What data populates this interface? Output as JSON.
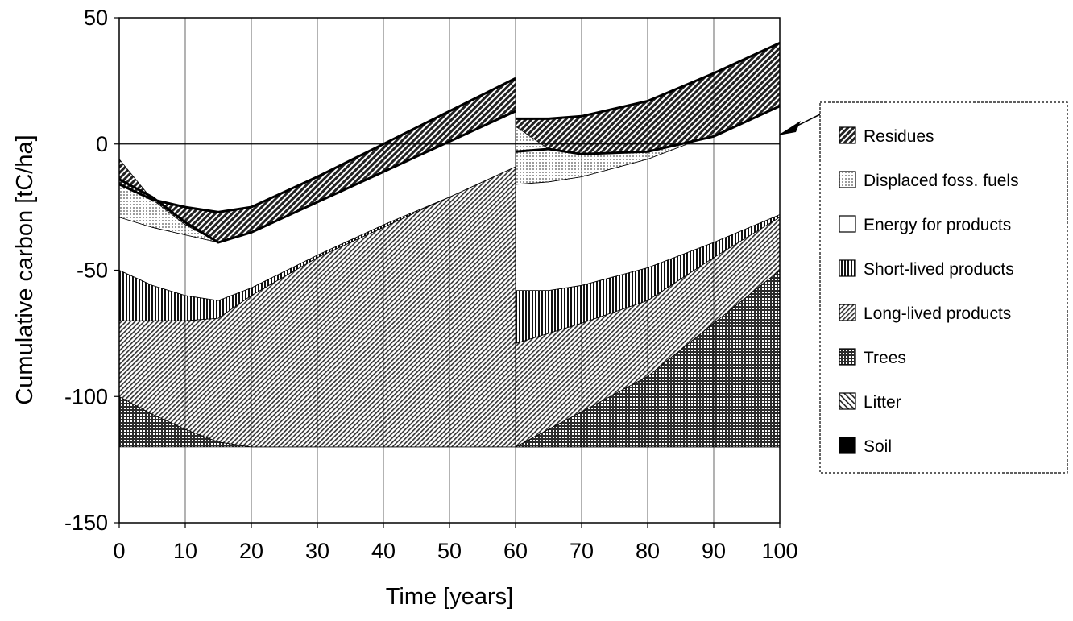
{
  "chart_data": {
    "type": "area",
    "title": "",
    "xlabel": "Time [years]",
    "ylabel": "Cumulative carbon [tC/ha]",
    "xlim": [
      0,
      100
    ],
    "ylim": [
      -150,
      50
    ],
    "x_ticks": [
      0,
      10,
      20,
      30,
      40,
      50,
      60,
      70,
      80,
      90,
      100
    ],
    "y_ticks": [
      50,
      0,
      -50,
      -100,
      -150
    ],
    "grid": "vertical",
    "stacking": "cumulative from bottom (Soil) to top (Residues); each series value is the upper boundary of its band",
    "legend_position": "right",
    "legend": [
      "Residues",
      "Displaced foss. fuels",
      "Energy for products",
      "Short-lived products",
      "Long-lived products",
      "Trees",
      "Litter",
      "Soil"
    ],
    "legend_colors": {
      "Residues": "#2b2b2b",
      "Displaced foss. fuels": "#dddddd",
      "Energy for products": "#ffffff",
      "Short-lived products": "#111111",
      "Long-lived products": "#555555",
      "Trees": "#333333",
      "Litter": "#777777",
      "Soil": "#000000"
    },
    "segments": [
      {
        "x": [
          0,
          5,
          10,
          15,
          20,
          30,
          40,
          50,
          60
        ],
        "baseline": -100,
        "series": [
          {
            "name": "Soil",
            "values": [
              -100,
              -100,
              -100,
              -100,
              -100,
              -100,
              -100,
              -100,
              -100
            ]
          },
          {
            "name": "Litter",
            "values": [
              -100,
              -100,
              -100,
              -100,
              -100,
              -100,
              -100,
              -100,
              -100
            ]
          },
          {
            "name": "Trees",
            "values": [
              -100,
              -107,
              -113,
              -118,
              -120,
              -120,
              -120,
              -120,
              -120
            ]
          },
          {
            "name": "Long-lived products",
            "values": [
              -70,
              -70,
              -70,
              -69,
              -60,
              -45,
              -33,
              -21,
              -9
            ]
          },
          {
            "name": "Short-lived products",
            "values": [
              -50,
              -56,
              -60,
              -62,
              -57,
              -44,
              -32,
              -21,
              -9
            ]
          },
          {
            "name": "Energy for products",
            "values": [
              -29,
              -33,
              -36,
              -39,
              -35,
              -23,
              -11,
              1,
              13
            ]
          },
          {
            "name": "Displaced foss. fuels",
            "values": [
              -16,
              -22,
              -25,
              -27,
              -25,
              -13,
              0,
              13,
              26
            ]
          },
          {
            "name": "Residues",
            "values": [
              -6,
              -22,
              -32,
              -39,
              -35,
              -23,
              -11,
              1,
              13
            ]
          }
        ],
        "trees_lower_override": "Trees band fills from -100 down-trending floor to Litter top; see values"
      },
      {
        "x": [
          60,
          65,
          70,
          80,
          90,
          100
        ],
        "baseline": -120,
        "series": [
          {
            "name": "Soil",
            "values": [
              -120,
              -120,
              -120,
              -120,
              -120,
              -120
            ]
          },
          {
            "name": "Litter",
            "values": [
              -120,
              -120,
              -120,
              -120,
              -120,
              -120
            ]
          },
          {
            "name": "Trees",
            "values": [
              -120,
              -113,
              -106,
              -92,
              -71,
              -50
            ]
          },
          {
            "name": "Long-lived products",
            "values": [
              -79,
              -75,
              -71,
              -62,
              -45,
              -29
            ]
          },
          {
            "name": "Short-lived products",
            "values": [
              -58,
              -58,
              -56,
              -49,
              -39,
              -28
            ]
          },
          {
            "name": "Energy for products",
            "values": [
              -16,
              -15,
              -13,
              -6,
              4,
              15
            ]
          },
          {
            "name": "Displaced foss. fuels",
            "values": [
              10,
              10,
              11,
              17,
              28,
              40
            ]
          },
          {
            "name": "Residues",
            "values": [
              7,
              -2,
              -4,
              -3,
              3,
              15
            ]
          }
        ]
      }
    ],
    "lines": [
      {
        "name": "Total",
        "x": [
          0,
          5,
          10,
          15,
          20,
          30,
          40,
          50,
          60
        ],
        "values": [
          -16,
          -22,
          -25,
          -27,
          -25,
          -13,
          0,
          13,
          26
        ]
      },
      {
        "name": "Total-2",
        "x": [
          0,
          5,
          10,
          15,
          20,
          30,
          40,
          50,
          60
        ],
        "values": [
          -14,
          -21,
          -31,
          -39,
          -35,
          -23,
          -11,
          1,
          13
        ]
      },
      {
        "name": "Total",
        "x": [
          60,
          65,
          70,
          80,
          90,
          100
        ],
        "values": [
          10,
          10,
          11,
          17,
          28,
          40
        ]
      },
      {
        "name": "Total-2",
        "x": [
          60,
          65,
          70,
          80,
          90,
          100
        ],
        "values": [
          -3,
          -2,
          -4,
          -3,
          3,
          15
        ]
      }
    ],
    "annotations": []
  }
}
